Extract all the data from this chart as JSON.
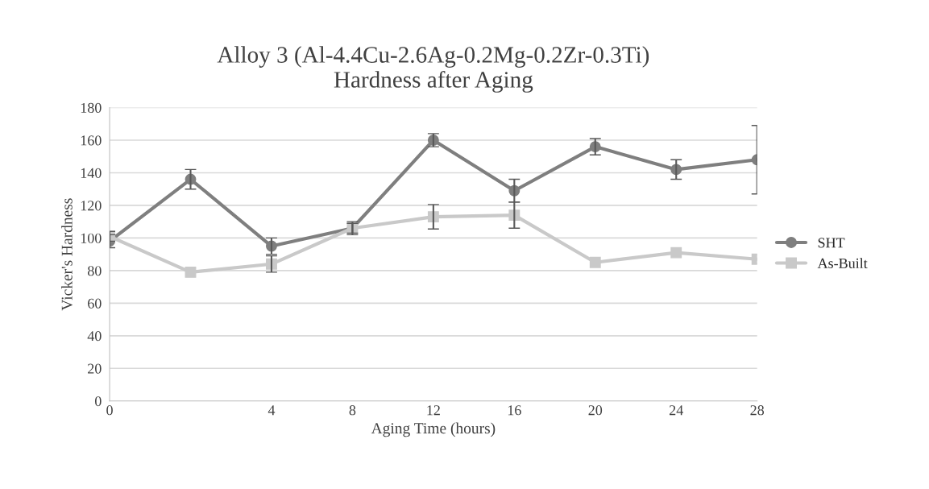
{
  "chart_data": {
    "type": "line",
    "title": "Alloy 3 (Al-4.4Cu-2.6Ag-0.2Mg-0.2Zr-0.3Ti)\nHardness after Aging",
    "xlabel": "Aging Time (hours)",
    "ylabel": "Vicker's Hardness",
    "categories": [
      "0",
      null,
      "4",
      "8",
      "12",
      "16",
      "20",
      "24",
      "28"
    ],
    "series": [
      {
        "name": "SHT",
        "color": "#7f7f7f",
        "marker": "circle",
        "values": [
          98,
          136,
          95,
          106,
          160,
          129,
          156,
          142,
          148
        ],
        "errors": [
          4,
          6,
          5,
          4,
          4,
          7,
          5,
          6,
          21
        ]
      },
      {
        "name": "As-Built",
        "color": "#c9c9c9",
        "marker": "square",
        "values": [
          101,
          79,
          84,
          106,
          113,
          114,
          85,
          91,
          87
        ],
        "errors": [
          3,
          null,
          5,
          3,
          7.5,
          8,
          null,
          null,
          null
        ]
      }
    ],
    "ylim": [
      0,
      180
    ],
    "yticks": [
      0,
      20,
      40,
      60,
      80,
      100,
      120,
      140,
      160,
      180
    ],
    "grid": "y",
    "legend": "right",
    "line_style": "solid"
  }
}
